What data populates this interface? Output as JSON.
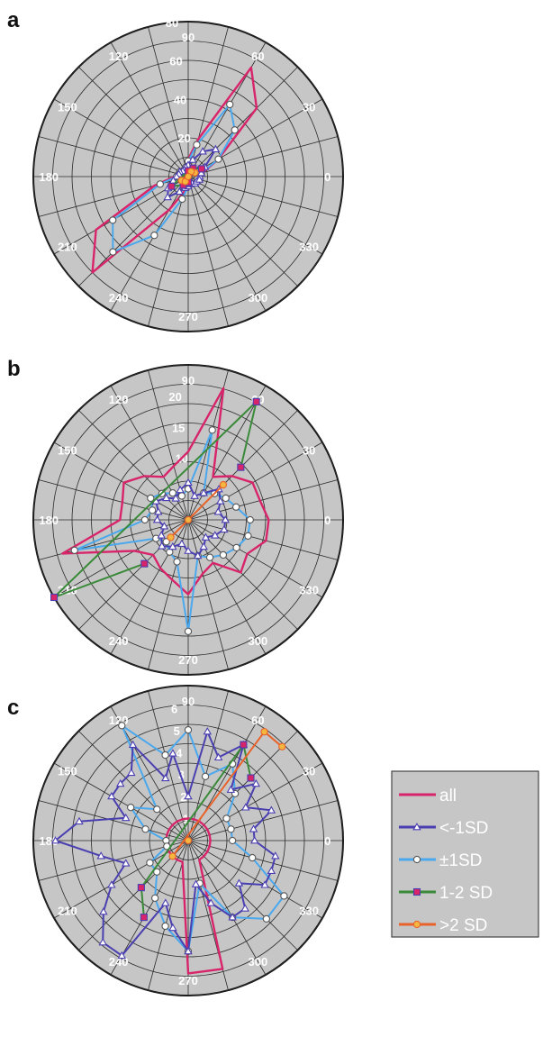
{
  "colors": {
    "plot_background": "#c6c6c6",
    "grid": "#2a2a2a",
    "all": "#d8246a",
    "lt_minus1SD": "#4a3fb0",
    "pm1SD": "#4aa8ee",
    "sd_1_2": "#3a8a3a",
    "gt_2SD": "#e8622a",
    "marker_orange": "#f5b640"
  },
  "legend": {
    "entries": [
      {
        "key": "all",
        "label": "all",
        "marker": "none"
      },
      {
        "key": "lt_minus1SD",
        "label": "<-1SD",
        "marker": "triangle"
      },
      {
        "key": "pm1SD",
        "label": "±1SD",
        "marker": "circle"
      },
      {
        "key": "sd_1_2",
        "label": "1-2 SD",
        "marker": "square"
      },
      {
        "key": "gt_2SD",
        "label": ">2 SD",
        "marker": "circle"
      }
    ]
  },
  "chart_data": [
    {
      "type": "polar-line",
      "panel": "a",
      "angle_ticks": [
        "0",
        "30",
        "60",
        "90",
        "120",
        "150",
        "180",
        "210",
        "240",
        "270",
        "300",
        "330"
      ],
      "radial_ticks": [
        "0",
        "20",
        "40",
        "60",
        "80"
      ],
      "rmax": 80,
      "series": [
        {
          "key": "all",
          "theta": [
            0,
            15,
            30,
            45,
            60,
            75,
            90,
            105,
            120,
            135,
            150,
            165,
            180,
            195,
            210,
            225,
            240,
            255,
            270,
            285,
            300,
            315,
            330,
            345
          ],
          "r": [
            6,
            8,
            18,
            50,
            65,
            20,
            9,
            6,
            4,
            4,
            5,
            5,
            7,
            18,
            55,
            70,
            20,
            8,
            5,
            4,
            4,
            4,
            5,
            6
          ]
        },
        {
          "key": "pm1SD",
          "theta": [
            0,
            15,
            30,
            45,
            60,
            75,
            90,
            105,
            120,
            135,
            150,
            165,
            180,
            195,
            210,
            225,
            240,
            255,
            270,
            285,
            300,
            315,
            330,
            345
          ],
          "r": [
            5,
            7,
            18,
            34,
            43,
            17,
            8,
            5,
            4,
            4,
            5,
            5,
            6,
            15,
            45,
            55,
            35,
            12,
            5,
            4,
            4,
            4,
            5,
            5
          ]
        },
        {
          "key": "lt_minus1SD",
          "theta": [
            0,
            15,
            30,
            45,
            60,
            75,
            90,
            105,
            120,
            135,
            150,
            165,
            180,
            195,
            210,
            225,
            240,
            255,
            270,
            285,
            300,
            315,
            330,
            345
          ],
          "r": [
            6,
            7,
            10,
            20,
            15,
            9,
            6,
            5,
            4,
            4,
            5,
            5,
            6,
            8,
            12,
            15,
            9,
            6,
            5,
            4,
            4,
            5,
            5,
            6
          ]
        },
        {
          "key": "sd_1_2",
          "theta": [
            30,
            60,
            90,
            210,
            240,
            270
          ],
          "r": [
            8,
            5,
            3,
            10,
            5,
            3
          ]
        },
        {
          "key": "gt_2SD",
          "theta": [
            30,
            60,
            210,
            240
          ],
          "r": [
            4,
            3,
            4,
            3
          ]
        }
      ]
    },
    {
      "type": "polar-line",
      "panel": "b",
      "angle_ticks": [
        "0",
        "30",
        "60",
        "90",
        "120",
        "150",
        "180",
        "210",
        "240",
        "270",
        "300",
        "330"
      ],
      "radial_ticks": [
        "0",
        "5",
        "10",
        "15",
        "20"
      ],
      "rmax": 25,
      "series": [
        {
          "key": "all",
          "theta": [
            0,
            15,
            30,
            45,
            60,
            75,
            90,
            105,
            120,
            135,
            150,
            165,
            180,
            195,
            210,
            225,
            240,
            255,
            270,
            285,
            300,
            315,
            330,
            345
          ],
          "r": [
            13,
            12,
            12,
            10,
            8,
            22,
            11,
            9,
            8,
            10,
            12,
            11,
            11,
            21,
            10,
            8,
            9,
            10,
            12,
            9,
            8,
            12,
            11,
            13
          ]
        },
        {
          "key": "pm1SD",
          "theta": [
            0,
            15,
            30,
            45,
            60,
            75,
            90,
            105,
            120,
            135,
            150,
            165,
            180,
            195,
            210,
            225,
            240,
            255,
            270,
            285,
            300,
            315,
            330,
            345
          ],
          "r": [
            10,
            8,
            7,
            6,
            5,
            15,
            5,
            4,
            5,
            6,
            7,
            6,
            7,
            19,
            6,
            5,
            6,
            7,
            18,
            6,
            7,
            8,
            9,
            10
          ]
        },
        {
          "key": "lt_minus1SD",
          "theta": [
            0,
            15,
            30,
            45,
            60,
            75,
            90,
            105,
            120,
            135,
            150,
            165,
            180,
            195,
            210,
            225,
            240,
            255,
            270,
            285,
            300,
            315,
            330,
            345
          ],
          "r": [
            6,
            5,
            6,
            7,
            5,
            4,
            6,
            5,
            4,
            5,
            6,
            5,
            5,
            4,
            5,
            6,
            5,
            4,
            5,
            6,
            5,
            4,
            5,
            6
          ]
        },
        {
          "key": "sd_1_2",
          "theta": [
            45,
            60,
            210,
            225
          ],
          "r": [
            12,
            22,
            25,
            10
          ]
        },
        {
          "key": "gt_2SD",
          "theta": [
            45,
            225
          ],
          "r": [
            8,
            4
          ]
        }
      ]
    },
    {
      "type": "polar-line",
      "panel": "c",
      "angle_ticks": [
        "0",
        "30",
        "60",
        "90",
        "120",
        "150",
        "180",
        "210",
        "240",
        "270",
        "300",
        "330"
      ],
      "radial_ticks": [
        "0",
        "1",
        "2",
        "3",
        "4",
        "5",
        "6"
      ],
      "rmax": 7,
      "series": [
        {
          "key": "all",
          "theta": [
            0,
            15,
            30,
            45,
            60,
            75,
            90,
            105,
            120,
            135,
            150,
            165,
            180,
            195,
            210,
            225,
            240,
            255,
            270,
            285,
            300,
            315,
            330,
            345
          ],
          "r": [
            1,
            1,
            1,
            1,
            1,
            1,
            1,
            1,
            1,
            1,
            1,
            1,
            1,
            1,
            1,
            1,
            1,
            1,
            6,
            6,
            1,
            1,
            1,
            1
          ]
        },
        {
          "key": "lt_minus1SD",
          "theta": [
            0,
            10,
            20,
            30,
            40,
            50,
            60,
            70,
            80,
            90,
            100,
            110,
            120,
            130,
            140,
            150,
            160,
            170,
            180,
            190,
            200,
            210,
            220,
            230,
            240,
            250,
            260,
            270,
            280,
            290,
            300,
            310,
            320,
            330,
            340,
            350
          ],
          "r": [
            3,
            3,
            4,
            3,
            4,
            3,
            5,
            4,
            5,
            2,
            4,
            3,
            5,
            4,
            4,
            4,
            3,
            5,
            6,
            4,
            3,
            4,
            5,
            6,
            6,
            3,
            4,
            5,
            2,
            3,
            4,
            4,
            3,
            4,
            4,
            4
          ]
        },
        {
          "key": "pm1SD",
          "theta": [
            0,
            15,
            30,
            45,
            60,
            75,
            90,
            105,
            120,
            135,
            150,
            165,
            180,
            195,
            210,
            225,
            240,
            255,
            270,
            285,
            300,
            315,
            330,
            345
          ],
          "r": [
            2,
            2,
            2,
            3,
            4,
            3,
            5,
            4,
            6,
            2,
            3,
            2,
            1,
            1,
            2,
            2,
            3,
            4,
            5,
            2,
            4,
            5,
            5,
            3
          ]
        },
        {
          "key": "sd_1_2",
          "theta": [
            45,
            60,
            225,
            240
          ],
          "r": [
            4,
            5,
            3,
            4
          ]
        },
        {
          "key": "gt_2SD",
          "theta": [
            45,
            55,
            225
          ],
          "r": [
            6,
            6,
            1
          ]
        }
      ]
    }
  ]
}
